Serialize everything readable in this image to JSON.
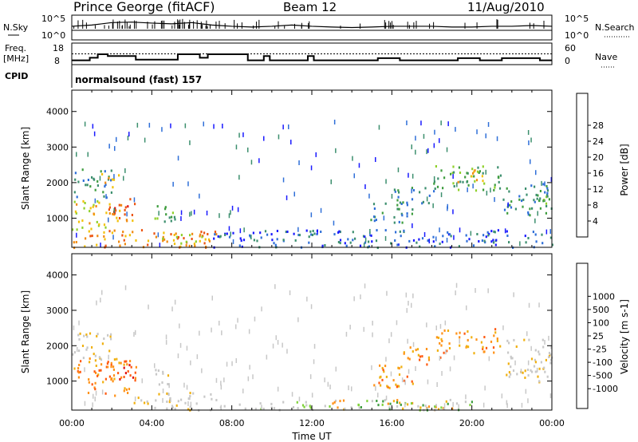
{
  "header": {
    "station": "Prince George (fitACF)",
    "beam": "Beam 12",
    "date": "11/Aug/2010"
  },
  "strip_nsky": {
    "left_label": "N.Sky",
    "right_label": "N.Search",
    "left_ticks": [
      "10^5",
      "10^0"
    ],
    "right_ticks": [
      "10^5",
      "10^0"
    ]
  },
  "strip_freq": {
    "left_label_1": "Freq.",
    "left_label_2": "[MHz]",
    "right_label": "Nave",
    "left_ticks": [
      "18",
      "8"
    ],
    "right_ticks": [
      "60",
      "0"
    ],
    "cpid_label": "CPID",
    "cpid_text": "normalsound (fast) 157"
  },
  "colors": {
    "power": [
      "#1a1aff",
      "#2f6fd8",
      "#3c8f6e",
      "#3f9d3f",
      "#8fd02a",
      "#f2c10a",
      "#f08a10",
      "#ec5410",
      "#e01010"
    ],
    "velocity": [
      "#e01010",
      "#ff5a10",
      "#ff9218",
      "#f0b010",
      "#c8c8c8",
      "#c8c8c8",
      "#7fd23a",
      "#3f9d3f",
      "#1a7a6a",
      "#2f5fc8",
      "#1a1aff"
    ]
  },
  "chart_data": [
    {
      "type": "line",
      "title": "",
      "ylabel": "N.Sky",
      "y_ticks": [
        "10^5",
        "10^0"
      ],
      "series": [
        {
          "name": "N.Sky",
          "x": [
            0,
            1,
            2,
            3,
            4,
            5,
            6,
            7,
            8,
            9,
            10,
            11,
            12,
            13,
            14,
            15,
            16,
            17,
            18,
            19,
            20,
            21,
            22,
            23,
            24
          ],
          "values": [
            0.55,
            0.6,
            0.7,
            0.72,
            0.68,
            0.65,
            0.7,
            0.6,
            0.55,
            0.52,
            0.55,
            0.6,
            0.55,
            0.52,
            0.5,
            0.52,
            0.55,
            0.55,
            0.55,
            0.52,
            0.52,
            0.55,
            0.55,
            0.58,
            0.55
          ]
        },
        {
          "name": "N.Search",
          "x": [
            0,
            24
          ],
          "values": [
            0.3,
            0.3
          ]
        }
      ]
    },
    {
      "type": "line",
      "title": "",
      "ylabel": "Freq. [MHz]",
      "y_ticks": [
        "18",
        "8"
      ],
      "x_hours": [
        0.0,
        0.9,
        1.3,
        1.8,
        3.2,
        5.3,
        6.4,
        6.8,
        8.8,
        9.2,
        9.6,
        9.9,
        10.3,
        11.1,
        11.8,
        12.1,
        14.6,
        15.3,
        16.4,
        17.8,
        19.3,
        20.4,
        21.5,
        23.4,
        24.0
      ],
      "freq_mhz": [
        10.0,
        11.2,
        12.8,
        12.0,
        10.3,
        12.8,
        11.2,
        12.8,
        10.0,
        10.0,
        12.0,
        10.0,
        10.0,
        10.0,
        12.0,
        10.0,
        10.0,
        11.0,
        10.0,
        10.0,
        11.0,
        10.0,
        11.0,
        10.0,
        10.0
      ],
      "nave_reference": 30,
      "nave_range": [
        0,
        60
      ],
      "ylim": [
        8,
        18
      ]
    },
    {
      "type": "heatmap",
      "title": "",
      "xlabel": "",
      "ylabel": "Slant Range [km]",
      "x_ticks": [
        "00:00",
        "04:00",
        "08:00",
        "12:00",
        "16:00",
        "20:00",
        "00:00"
      ],
      "xlim": [
        0,
        24
      ],
      "y_ticks": [
        "1000",
        "2000",
        "3000",
        "4000"
      ],
      "ylim": [
        180,
        4600
      ],
      "colorbar_label": "Power [dB]",
      "colorbar_ticks": [
        "4",
        "8",
        "12",
        "16",
        "20",
        "24",
        "28"
      ],
      "regions": [
        {
          "t": [
            0.0,
            7.2
          ],
          "r": [
            200,
            700
          ],
          "level": 6
        },
        {
          "t": [
            0.0,
            1.8
          ],
          "r": [
            700,
            1600
          ],
          "level": 5
        },
        {
          "t": [
            1.8,
            3.2
          ],
          "r": [
            800,
            1600
          ],
          "level": 6
        },
        {
          "t": [
            2.0,
            3.0
          ],
          "r": [
            1100,
            1500
          ],
          "level": 8
        },
        {
          "t": [
            0.0,
            2.0
          ],
          "r": [
            1600,
            2400
          ],
          "level": 2
        },
        {
          "t": [
            1.4,
            2.4
          ],
          "r": [
            1900,
            2300
          ],
          "level": 5
        },
        {
          "t": [
            4.0,
            5.2
          ],
          "r": [
            800,
            1400
          ],
          "level": 3
        },
        {
          "t": [
            4.5,
            7.0
          ],
          "r": [
            300,
            600
          ],
          "level": 5
        },
        {
          "t": [
            7.0,
            24.0
          ],
          "r": [
            200,
            700
          ],
          "level": 1
        },
        {
          "t": [
            14.8,
            17.0
          ],
          "r": [
            900,
            1500
          ],
          "level": 2
        },
        {
          "t": [
            16.0,
            18.2
          ],
          "r": [
            1400,
            1900
          ],
          "level": 2
        },
        {
          "t": [
            18.0,
            21.5
          ],
          "r": [
            1800,
            2500
          ],
          "level": 3
        },
        {
          "t": [
            19.2,
            20.8
          ],
          "r": [
            2000,
            2400
          ],
          "level": 5
        },
        {
          "t": [
            21.5,
            24.0
          ],
          "r": [
            1100,
            2000
          ],
          "level": 2
        },
        {
          "t": [
            22.5,
            24.0
          ],
          "r": [
            1300,
            1700
          ],
          "level": 3
        }
      ]
    },
    {
      "type": "heatmap",
      "title": "",
      "xlabel": "Time UT",
      "ylabel": "Slant Range [km]",
      "x_ticks": [
        "00:00",
        "04:00",
        "08:00",
        "12:00",
        "16:00",
        "20:00",
        "00:00"
      ],
      "xlim": [
        0,
        24
      ],
      "y_ticks": [
        "1000",
        "2000",
        "3000",
        "4000"
      ],
      "ylim": [
        180,
        4600
      ],
      "colorbar_label": "Velocity [m s-1]",
      "colorbar_ticks": [
        "-1000",
        "-500",
        "-100",
        "-25",
        "25",
        "100",
        "500",
        "1000"
      ],
      "regions": [
        {
          "t": [
            0.0,
            3.0
          ],
          "r": [
            600,
            1700
          ],
          "level": 2
        },
        {
          "t": [
            0.0,
            2.0
          ],
          "r": [
            1600,
            2400
          ],
          "level": 4
        },
        {
          "t": [
            1.5,
            3.2
          ],
          "r": [
            1000,
            1500
          ],
          "level": 1
        },
        {
          "t": [
            3.0,
            7.5
          ],
          "r": [
            200,
            700
          ],
          "level": 4
        },
        {
          "t": [
            4.0,
            5.0
          ],
          "r": [
            900,
            1400
          ],
          "level": 4
        },
        {
          "t": [
            7.5,
            13.0
          ],
          "r": [
            200,
            450
          ],
          "level": 5
        },
        {
          "t": [
            13.0,
            19.0
          ],
          "r": [
            200,
            500
          ],
          "level": 3
        },
        {
          "t": [
            15.0,
            17.2
          ],
          "r": [
            800,
            1500
          ],
          "level": 2
        },
        {
          "t": [
            16.5,
            18.5
          ],
          "r": [
            1500,
            2000
          ],
          "level": 2
        },
        {
          "t": [
            18.2,
            21.5
          ],
          "r": [
            1800,
            2500
          ],
          "level": 2
        },
        {
          "t": [
            21.5,
            24.0
          ],
          "r": [
            1000,
            2200
          ],
          "level": 4
        },
        {
          "t": [
            14.0,
            20.0
          ],
          "r": [
            200,
            500
          ],
          "level": 6
        }
      ]
    }
  ]
}
